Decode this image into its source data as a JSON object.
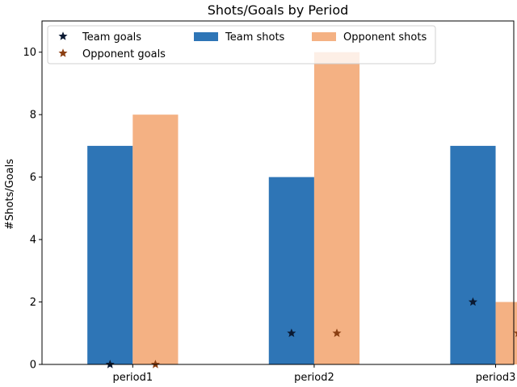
{
  "chart_data": {
    "type": "bar",
    "title": "Shots/Goals by Period",
    "xlabel": "",
    "ylabel": "#Shots/Goals",
    "categories": [
      "period1",
      "period2",
      "period3"
    ],
    "ylim": [
      0,
      11
    ],
    "yticks": [
      0,
      2,
      4,
      6,
      8,
      10
    ],
    "grid": false,
    "legend_position": "top",
    "series": [
      {
        "name": "Team shots",
        "kind": "bar",
        "values": [
          7,
          6,
          7
        ],
        "color": "#2e75b6"
      },
      {
        "name": "Opponent shots",
        "kind": "bar",
        "values": [
          8,
          10,
          2
        ],
        "color": "#f4b183"
      },
      {
        "name": "Team goals",
        "kind": "marker",
        "marker": "star",
        "values": [
          0,
          1,
          2
        ],
        "color": "#0b1a33"
      },
      {
        "name": "Opponent goals",
        "kind": "marker",
        "marker": "star",
        "values": [
          0,
          1,
          1
        ],
        "color": "#8b3f12"
      }
    ]
  }
}
